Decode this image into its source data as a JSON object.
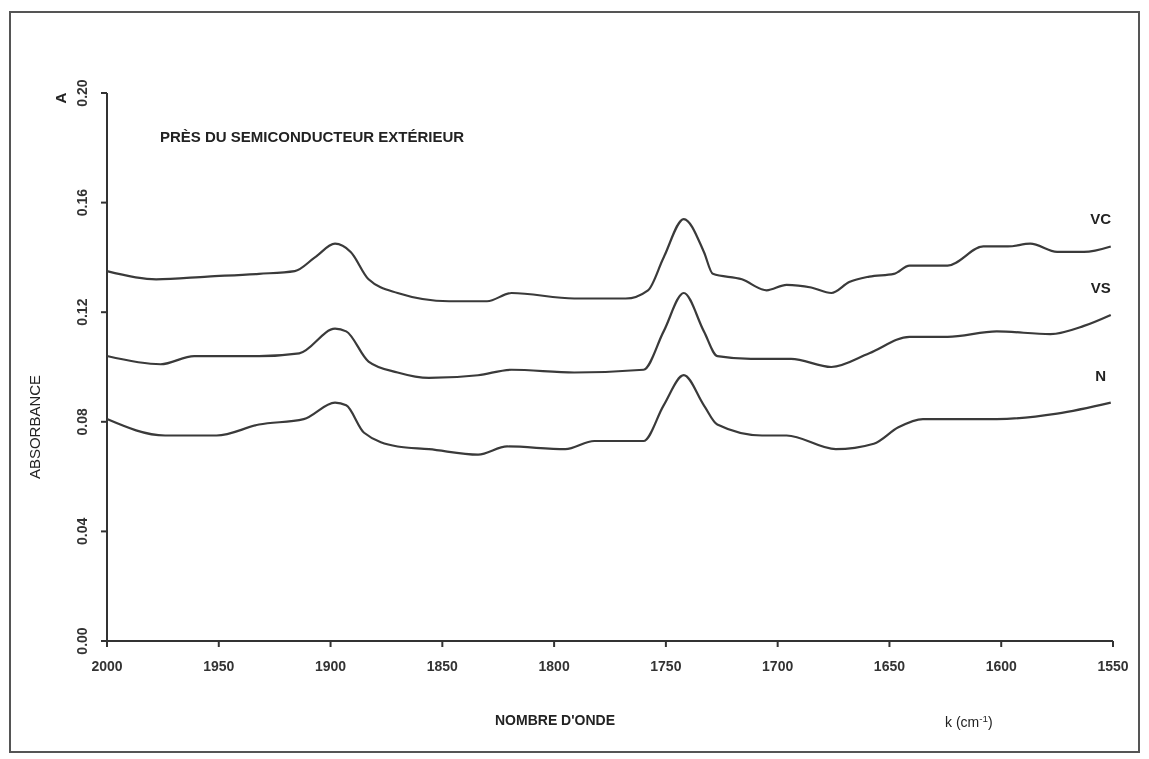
{
  "chart_data": {
    "type": "line",
    "title": "PRÈS DU SEMICONDUCTEUR EXTÉRIEUR",
    "xlabel": "NOMBRE D'ONDE",
    "ylabel": "ABSORBANCE",
    "annotations": [
      "A",
      "k (cm$^{-1}$)"
    ],
    "xlim": [
      2000,
      1550
    ],
    "xticks": [
      2000,
      1950,
      1900,
      1850,
      1800,
      1750,
      1700,
      1650,
      1600,
      1550
    ],
    "ylim": [
      0,
      0.2
    ],
    "yticks": [
      {
        "value": 0,
        "label": "0.00"
      },
      0.04,
      0.08,
      0.12,
      0.16,
      {
        "value": 0.2,
        "label": "0.20"
      }
    ],
    "grid": false,
    "marker": "none",
    "line_style": "solid",
    "series": [
      {
        "name": "VC",
        "color": "#3a3a3a",
        "x": [
          2000,
          1978,
          1955,
          1932,
          1916,
          1907,
          1898,
          1891,
          1883,
          1870,
          1847,
          1830,
          1819,
          1791,
          1768,
          1758,
          1751,
          1742,
          1733,
          1729,
          1716,
          1705,
          1696,
          1685,
          1676,
          1668,
          1659,
          1648,
          1641,
          1624,
          1608,
          1597,
          1587,
          1575,
          1563,
          1551
        ],
        "values": [
          0.135,
          0.132,
          0.133,
          0.134,
          0.135,
          0.14,
          0.145,
          0.142,
          0.132,
          0.127,
          0.124,
          0.124,
          0.127,
          0.125,
          0.125,
          0.128,
          0.14,
          0.154,
          0.142,
          0.134,
          0.132,
          0.128,
          0.13,
          0.129,
          0.127,
          0.131,
          0.133,
          0.134,
          0.137,
          0.137,
          0.144,
          0.144,
          0.145,
          0.142,
          0.142,
          0.144
        ]
      },
      {
        "name": "VS",
        "color": "#3a3a3a",
        "x": [
          2000,
          1976,
          1961,
          1932,
          1914,
          1898,
          1893,
          1883,
          1870,
          1856,
          1834,
          1819,
          1791,
          1760,
          1751,
          1742,
          1733,
          1727,
          1712,
          1694,
          1676,
          1659,
          1641,
          1624,
          1602,
          1578,
          1563,
          1551
        ],
        "values": [
          0.104,
          0.101,
          0.104,
          0.104,
          0.105,
          0.114,
          0.113,
          0.102,
          0.098,
          0.096,
          0.097,
          0.099,
          0.098,
          0.099,
          0.113,
          0.127,
          0.113,
          0.104,
          0.103,
          0.103,
          0.1,
          0.105,
          0.111,
          0.111,
          0.113,
          0.112,
          0.115,
          0.119
        ]
      },
      {
        "name": "N",
        "color": "#3a3a3a",
        "x": [
          2000,
          1974,
          1951,
          1932,
          1912,
          1898,
          1893,
          1885,
          1870,
          1856,
          1834,
          1821,
          1795,
          1782,
          1760,
          1751,
          1742,
          1733,
          1727,
          1707,
          1696,
          1674,
          1657,
          1646,
          1635,
          1602,
          1575,
          1551
        ],
        "values": [
          0.081,
          0.075,
          0.075,
          0.079,
          0.081,
          0.087,
          0.086,
          0.076,
          0.071,
          0.07,
          0.068,
          0.071,
          0.07,
          0.073,
          0.073,
          0.086,
          0.097,
          0.086,
          0.079,
          0.075,
          0.075,
          0.07,
          0.072,
          0.078,
          0.081,
          0.081,
          0.083,
          0.087
        ]
      }
    ]
  }
}
